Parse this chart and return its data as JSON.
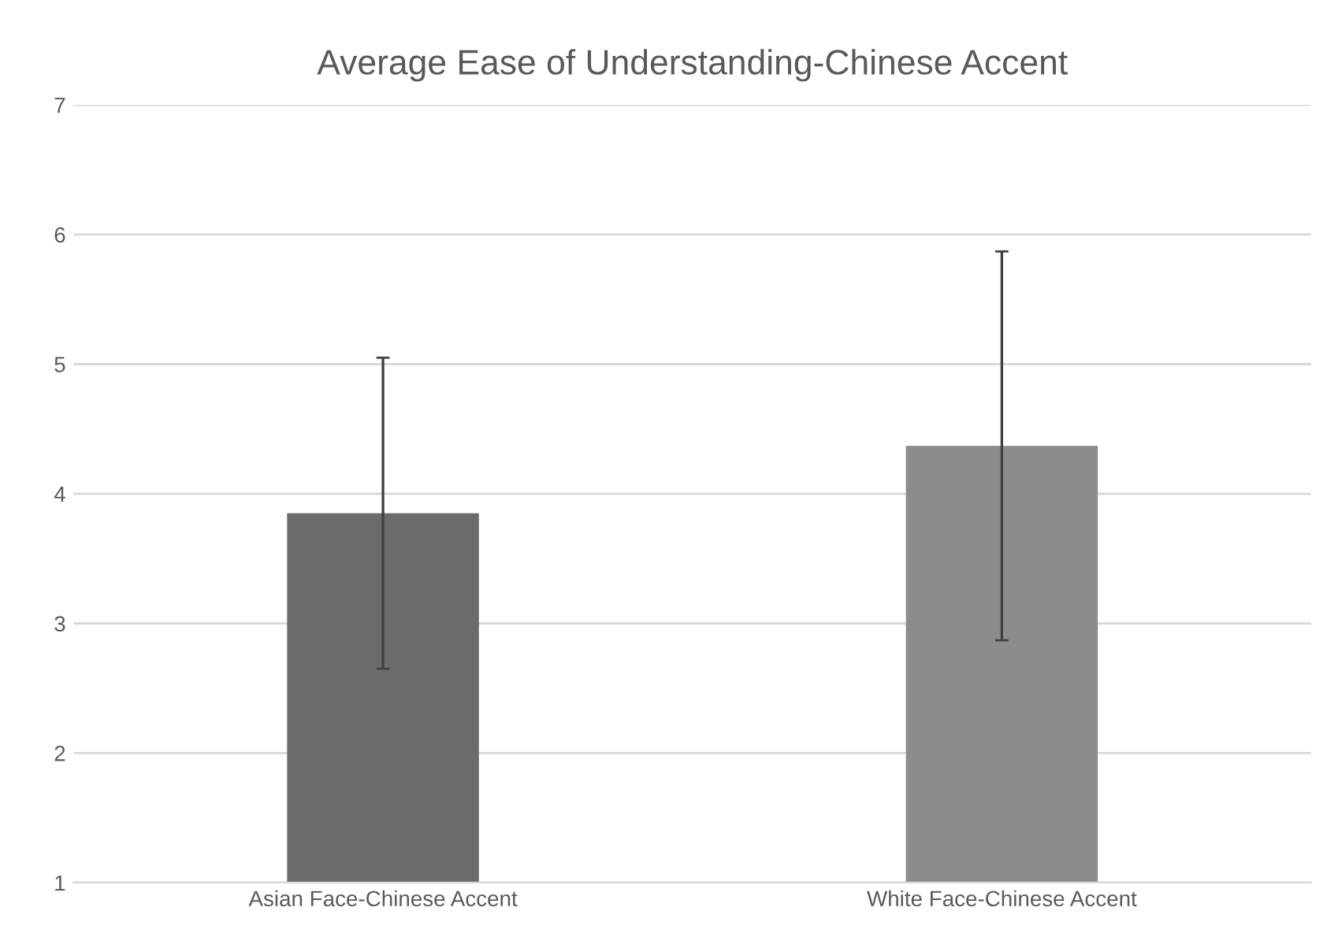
{
  "chart_data": {
    "type": "bar",
    "title": "Average Ease of Understanding-Chinese Accent",
    "categories": [
      "Asian Face-Chinese Accent",
      "White Face-Chinese Accent"
    ],
    "values": [
      3.85,
      4.37
    ],
    "colors": [
      "#6b6b6b",
      "#8c8c8c"
    ],
    "errors": [
      1.2,
      1.5
    ],
    "ylim": [
      1,
      7
    ],
    "yticks": [
      1,
      2,
      3,
      4,
      5,
      6,
      7
    ],
    "grid": "y"
  }
}
